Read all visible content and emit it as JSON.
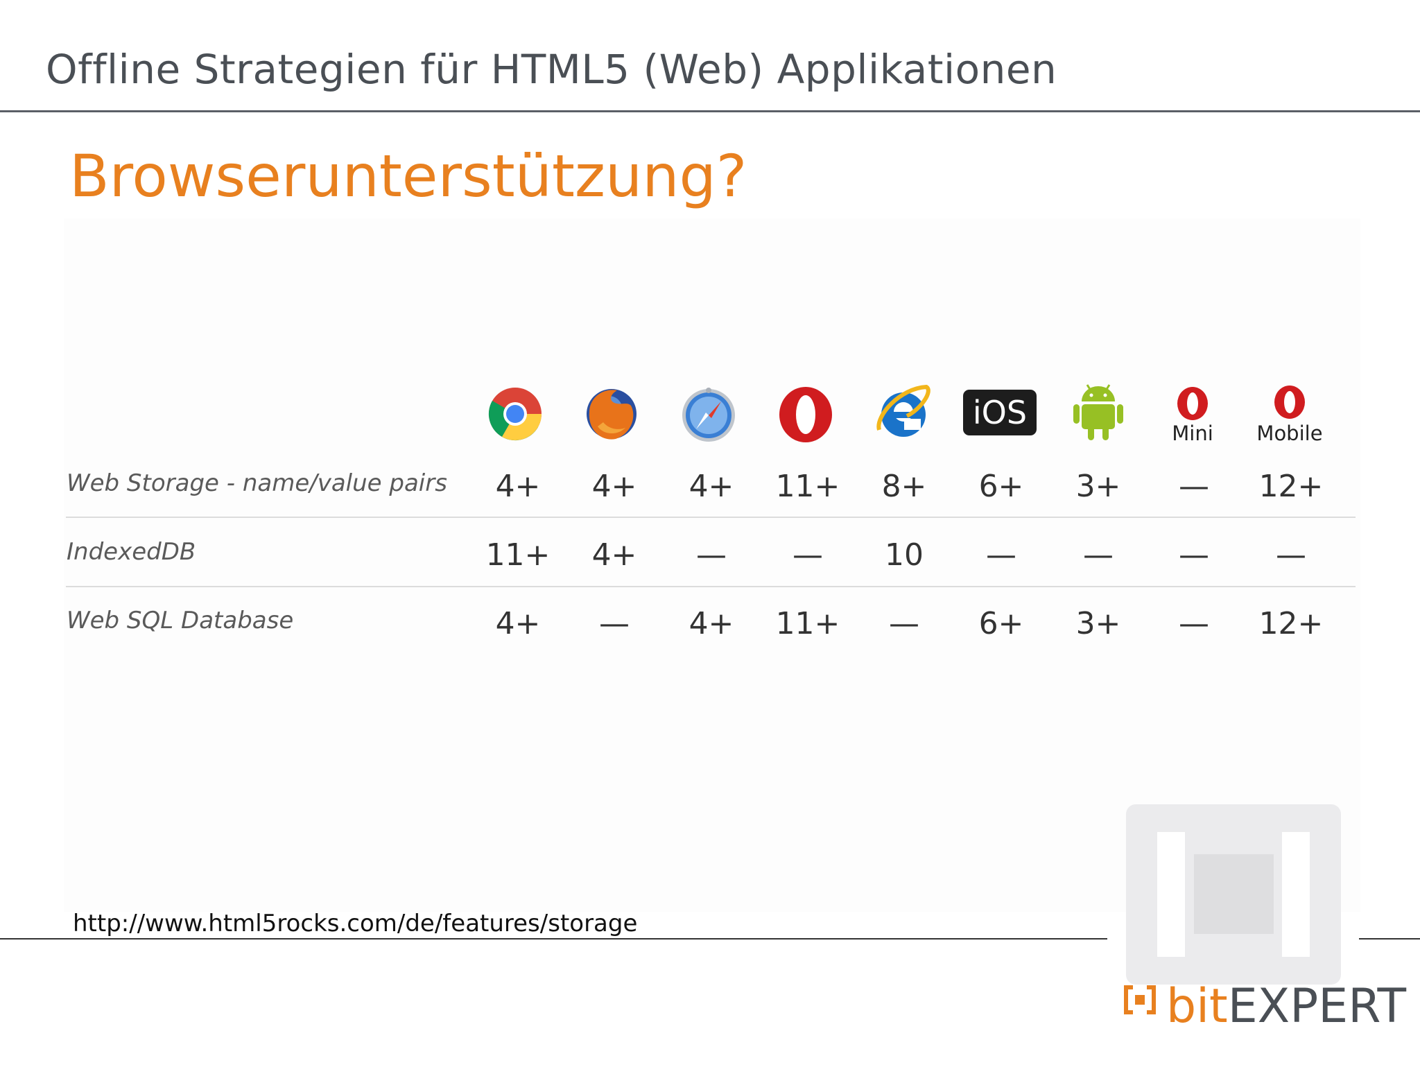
{
  "header": {
    "title": "Offline Strategien für HTML5 (Web) Applikationen"
  },
  "slide": {
    "title": "Browserunterstützung?"
  },
  "browsers": [
    {
      "icon": "chrome-icon",
      "caption": ""
    },
    {
      "icon": "firefox-icon",
      "caption": ""
    },
    {
      "icon": "safari-icon",
      "caption": ""
    },
    {
      "icon": "opera-icon",
      "caption": ""
    },
    {
      "icon": "internet-explorer-icon",
      "caption": ""
    },
    {
      "icon": "ios-icon",
      "caption": ""
    },
    {
      "icon": "android-icon",
      "caption": ""
    },
    {
      "icon": "opera-mini-icon",
      "caption": "Mini"
    },
    {
      "icon": "opera-mobile-icon",
      "caption": "Mobile"
    }
  ],
  "ios_label": "iOS",
  "table": {
    "rows": [
      {
        "label": "Web Storage - name/value pairs",
        "values": [
          "4+",
          "4+",
          "4+",
          "11+",
          "8+",
          "6+",
          "3+",
          "—",
          "12+"
        ]
      },
      {
        "label": "IndexedDB",
        "values": [
          "11+",
          "4+",
          "—",
          "—",
          "10",
          "—",
          "—",
          "—",
          "—"
        ]
      },
      {
        "label": "Web SQL Database",
        "values": [
          "4+",
          "—",
          "4+",
          "11+",
          "—",
          "6+",
          "3+",
          "—",
          "12+"
        ]
      }
    ]
  },
  "source": {
    "url": "http://www.html5rocks.com/de/features/storage"
  },
  "brand": {
    "name_part1": "bit",
    "name_part2": "EXPERT"
  },
  "colors": {
    "accent": "#e8801f",
    "text_dark": "#4a4f55"
  }
}
